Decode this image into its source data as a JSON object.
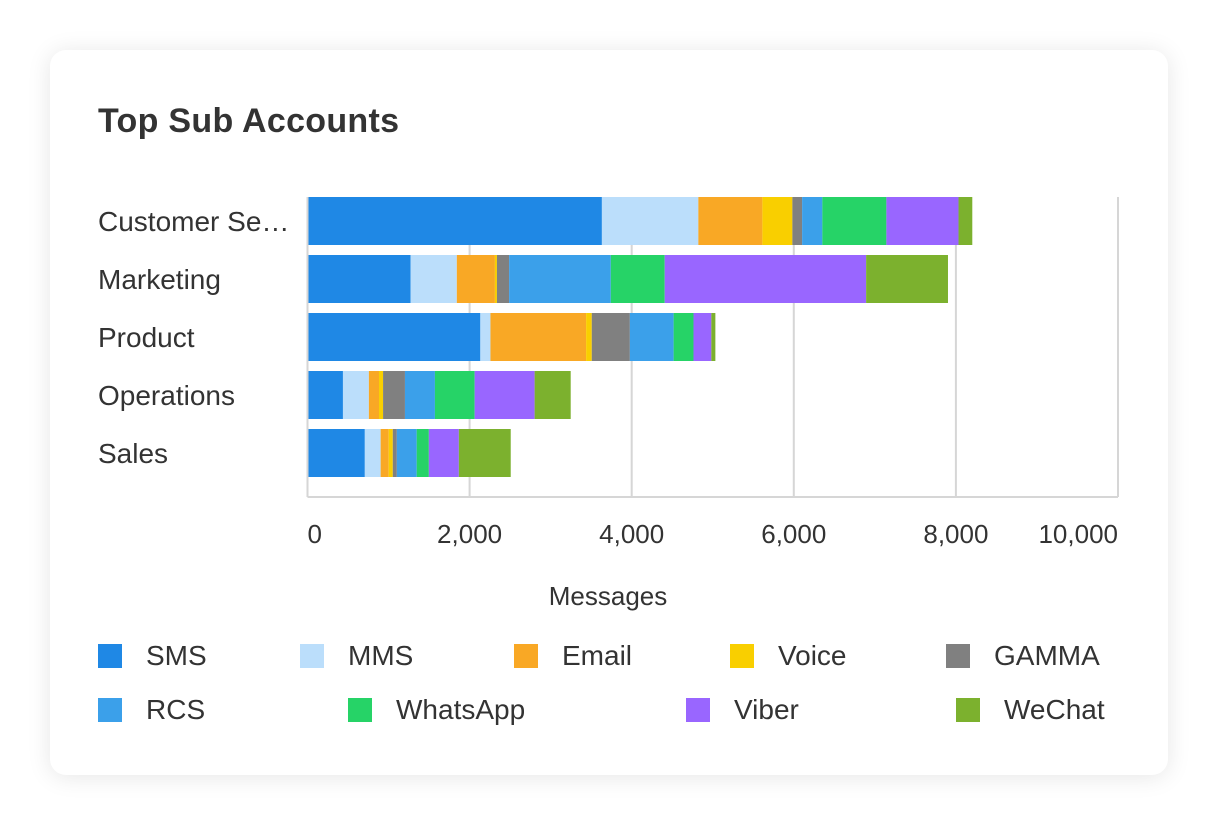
{
  "card": {
    "title": "Top Sub Accounts"
  },
  "chart_data": {
    "type": "bar",
    "orientation": "horizontal",
    "stacked": true,
    "title": "Top Sub Accounts",
    "xlabel": "Messages",
    "ylabel": "",
    "xlim": [
      0,
      10000
    ],
    "xticks": [
      0,
      2000,
      4000,
      6000,
      8000,
      10000
    ],
    "xtick_labels": [
      "0",
      "2,000",
      "4,000",
      "6,000",
      "8,000",
      "10,000"
    ],
    "grid": true,
    "legend_position": "bottom",
    "categories": [
      "Customer Se…",
      "Marketing",
      "Product",
      "Operations",
      "Sales"
    ],
    "series": [
      {
        "name": "SMS",
        "color": "#1F88E5",
        "values": [
          3620,
          1260,
          2120,
          425,
          695
        ]
      },
      {
        "name": "MMS",
        "color": "#BBDEFB",
        "values": [
          1190,
          570,
          125,
          320,
          195
        ]
      },
      {
        "name": "Email",
        "color": "#F9A825",
        "values": [
          790,
          470,
          1180,
          125,
          100
        ]
      },
      {
        "name": "Voice",
        "color": "#F9CF00",
        "values": [
          370,
          25,
          70,
          50,
          50
        ]
      },
      {
        "name": "GAMMA",
        "color": "#808080",
        "values": [
          120,
          150,
          470,
          270,
          50
        ]
      },
      {
        "name": "RCS",
        "color": "#3BA0EA",
        "values": [
          250,
          1255,
          540,
          370,
          245
        ]
      },
      {
        "name": "WhatsApp",
        "color": "#26D367",
        "values": [
          790,
          665,
          245,
          490,
          150
        ]
      },
      {
        "name": "Viber",
        "color": "#9966FF",
        "values": [
          890,
          2485,
          220,
          740,
          370
        ]
      },
      {
        "name": "WeChat",
        "color": "#7CB12E",
        "values": [
          170,
          1010,
          50,
          445,
          640
        ]
      }
    ]
  }
}
